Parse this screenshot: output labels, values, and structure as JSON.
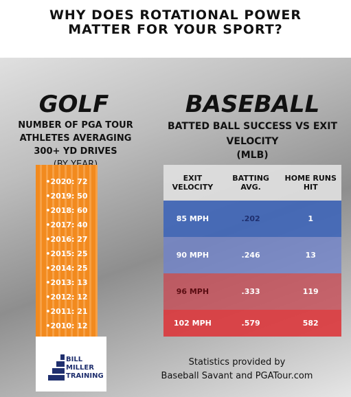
{
  "header": {
    "title": "WHY DOES ROTATIONAL POWER MATTER FOR YOUR SPORT?"
  },
  "golf": {
    "heading": "GOLF",
    "subtitle": "NUMBER OF PGA TOUR ATHLETES AVERAGING 300+ YD DRIVES",
    "note": "(BY YEAR)",
    "items": [
      "2020: 72",
      "2019: 50",
      "2018: 60",
      "2017: 40",
      "2016: 27",
      "2015: 25",
      "2014: 25",
      "2013: 13",
      "2012: 12",
      "2011: 21",
      "2010: 12"
    ]
  },
  "baseball": {
    "heading": "BASEBALL",
    "subtitle": "BATTED BALL SUCCESS VS EXIT VELOCITY",
    "note": "(MLB)",
    "table": {
      "headers": [
        "EXIT VELOCITY",
        "BATTING AVG.",
        "HOME RUNS HIT"
      ],
      "rows": [
        [
          "85 MPH",
          ".202",
          "1"
        ],
        [
          "90 MPH",
          ".246",
          "13"
        ],
        [
          "96 MPH",
          ".333",
          "119"
        ],
        [
          "102 MPH",
          ".579",
          "582"
        ]
      ]
    }
  },
  "logo": {
    "lines": [
      "BILL",
      "MILLER",
      "TRAINING"
    ]
  },
  "footer": {
    "lines": [
      "Statistics provided by",
      "Baseball Savant and PGATour.com"
    ]
  }
}
